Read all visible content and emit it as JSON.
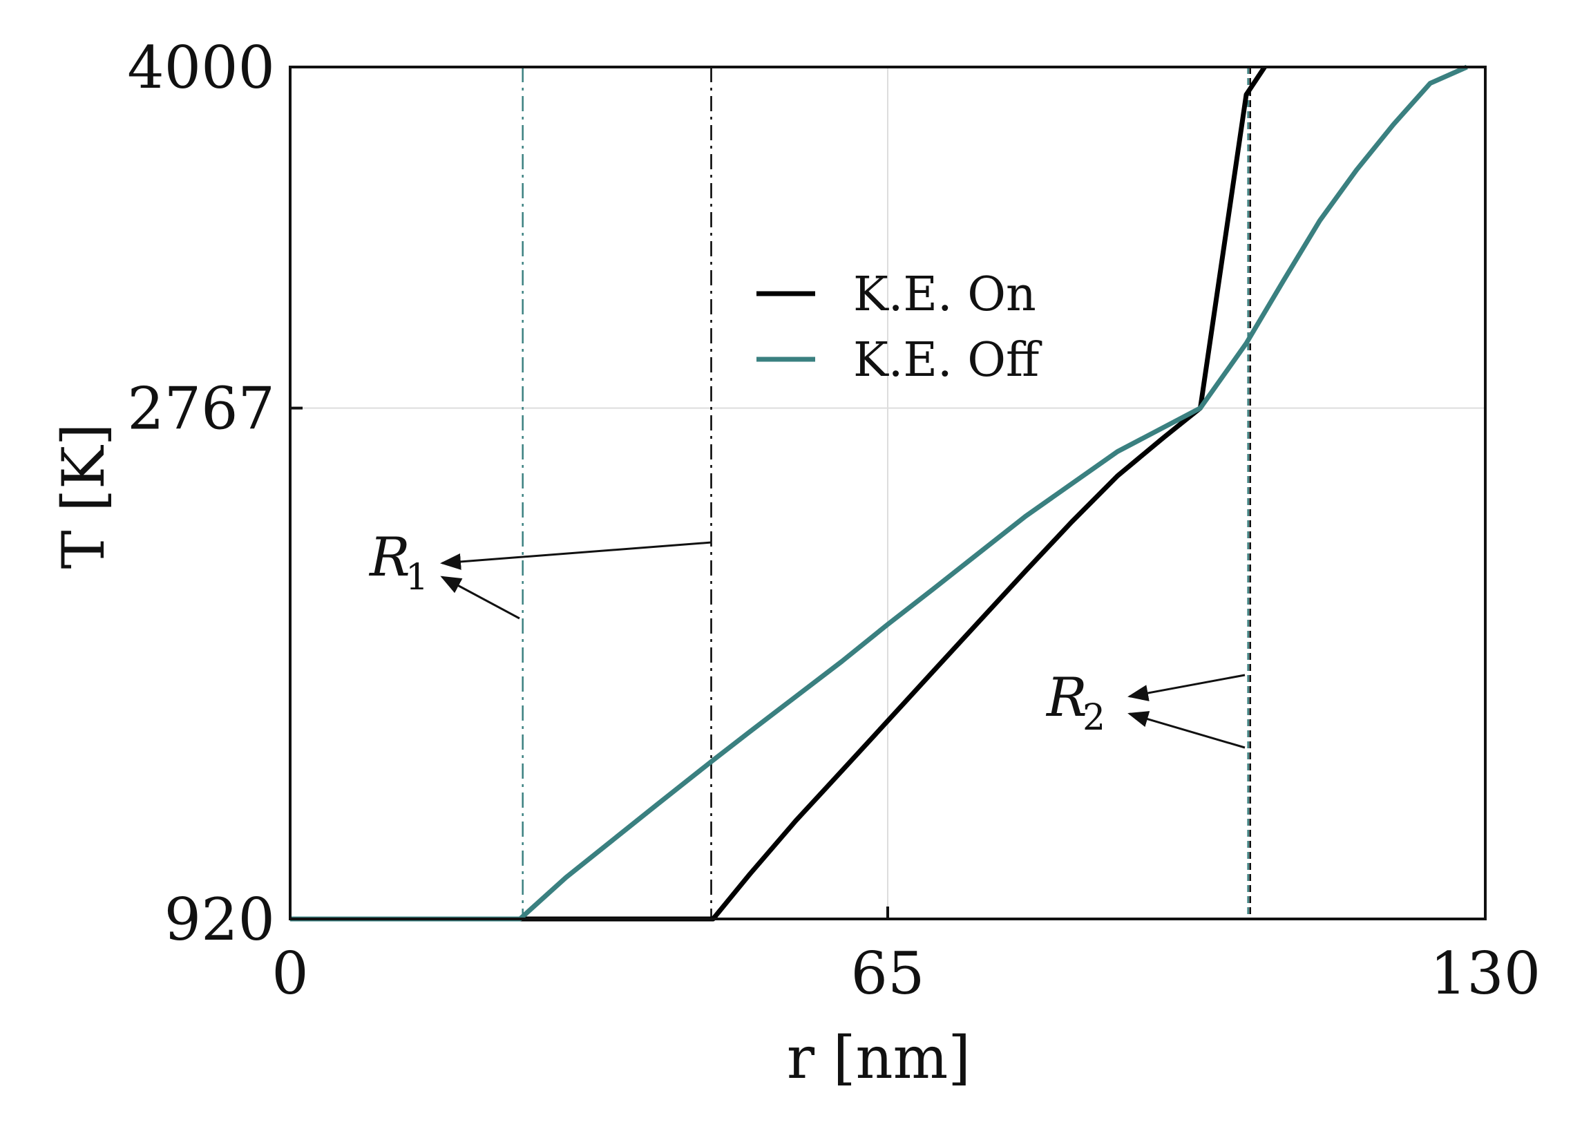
{
  "chart_data": {
    "type": "line",
    "title": "",
    "xlabel": "r [nm]",
    "ylabel": "T [K]",
    "xlim": [
      0,
      130
    ],
    "ylim": [
      920,
      4000
    ],
    "xticks": [
      0,
      65,
      130
    ],
    "yticks": [
      920,
      2767,
      4000
    ],
    "grid": true,
    "legend_position": "center",
    "series": [
      {
        "name": "K.E. On",
        "color": "#000000",
        "x": [
          0,
          46,
          50,
          55,
          60,
          65,
          70,
          75,
          80,
          85,
          90,
          95,
          99,
          104,
          106
        ],
        "y": [
          920,
          920,
          1082,
          1275,
          1455,
          1636,
          1817,
          1998,
          2178,
          2355,
          2522,
          2660,
          2767,
          3900,
          4000
        ]
      },
      {
        "name": "K.E. Off",
        "color": "#3a8080",
        "x": [
          0,
          25,
          30,
          40,
          46,
          50,
          60,
          65,
          70,
          80,
          90,
          99,
          104,
          108,
          112,
          116,
          120,
          124,
          128
        ],
        "y": [
          920,
          920,
          1070,
          1336,
          1494,
          1597,
          1851,
          1985,
          2114,
          2376,
          2610,
          2767,
          3001,
          3225,
          3445,
          3628,
          3792,
          3941,
          4000
        ]
      }
    ],
    "reference_lines": [
      {
        "x": 25.3,
        "color": "#3a8080",
        "style": "dash-dot"
      },
      {
        "x": 45.8,
        "color": "#000000",
        "style": "dash-dot"
      },
      {
        "x": 104.2,
        "color": "#3a8080",
        "style": "dashed"
      },
      {
        "x": 104.2,
        "color": "#000000",
        "style": "dashed"
      }
    ],
    "annotations": [
      {
        "label": "R",
        "subscript": "1"
      },
      {
        "label": "R",
        "subscript": "2"
      }
    ]
  }
}
